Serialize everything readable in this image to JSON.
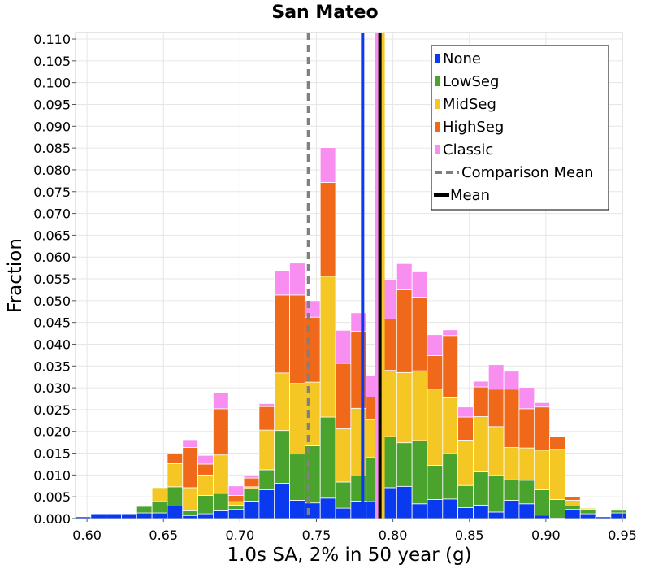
{
  "chart_data": {
    "type": "bar",
    "title": "San Mateo",
    "xlabel": "1.0s SA, 2% in 50 year (g)",
    "ylabel": "Fraction",
    "xlim": [
      0.5925,
      0.95
    ],
    "ylim": [
      0.0,
      0.1115
    ],
    "xticks": [
      "0.60",
      "0.65",
      "0.70",
      "0.75",
      "0.80",
      "0.85",
      "0.90",
      "0.95"
    ],
    "yticks": [
      "0.000",
      "0.005",
      "0.010",
      "0.015",
      "0.020",
      "0.025",
      "0.030",
      "0.035",
      "0.040",
      "0.045",
      "0.050",
      "0.055",
      "0.060",
      "0.065",
      "0.070",
      "0.075",
      "0.080",
      "0.085",
      "0.090",
      "0.095",
      "0.100",
      "0.105",
      "0.110"
    ],
    "grid": true,
    "stacked": true,
    "bin_start": 0.5925,
    "bin_width": 0.01,
    "series": [
      {
        "name": "None",
        "color": "#0a3af0",
        "values": [
          0.0004,
          0.0011,
          0.0011,
          0.0011,
          0.0013,
          0.0013,
          0.0029,
          0.0007,
          0.0011,
          0.0018,
          0.0021,
          0.004,
          0.0066,
          0.0081,
          0.0042,
          0.0036,
          0.0047,
          0.0024,
          0.004,
          0.0039,
          0.0071,
          0.0074,
          0.0034,
          0.0044,
          0.0045,
          0.0025,
          0.0031,
          0.0015,
          0.0042,
          0.0034,
          0.0008,
          0.0001,
          0.0021,
          0.0011,
          0.0004,
          0.0013
        ]
      },
      {
        "name": "LowSeg",
        "color": "#4aa32c",
        "values": [
          0,
          0,
          0,
          0,
          0.0015,
          0.0026,
          0.0044,
          0.0011,
          0.0042,
          0.004,
          0.001,
          0.0029,
          0.0046,
          0.0121,
          0.0106,
          0.0131,
          0.0186,
          0.006,
          0.0058,
          0.0101,
          0.0117,
          0.01,
          0.0145,
          0.0078,
          0.0104,
          0.0051,
          0.0076,
          0.0084,
          0.0047,
          0.0054,
          0.0058,
          0.0043,
          0.0008,
          0.001,
          0,
          0.0006
        ]
      },
      {
        "name": "MidSeg",
        "color": "#f4c725",
        "values": [
          0,
          0,
          0,
          0,
          0,
          0.0032,
          0.0053,
          0.0053,
          0.0047,
          0.0088,
          0.0008,
          0.0004,
          0.0091,
          0.0132,
          0.0162,
          0.0146,
          0.0323,
          0.0122,
          0.0155,
          0.0087,
          0.0152,
          0.0161,
          0.016,
          0.0175,
          0.0128,
          0.0104,
          0.0127,
          0.0112,
          0.0074,
          0.0074,
          0.0091,
          0.0115,
          0.0013,
          0.0003,
          0,
          0
        ]
      },
      {
        "name": "HighSeg",
        "color": "#f0691a",
        "values": [
          0,
          0,
          0,
          0,
          0,
          0,
          0.0023,
          0.0092,
          0.0025,
          0.0106,
          0.0014,
          0.002,
          0.0054,
          0.0179,
          0.0203,
          0.0149,
          0.0215,
          0.015,
          0.0177,
          0.0052,
          0.0118,
          0.019,
          0.0169,
          0.0077,
          0.0143,
          0.0053,
          0.0068,
          0.0086,
          0.0134,
          0.009,
          0.0099,
          0.0029,
          0.0008,
          0,
          0,
          0
        ]
      },
      {
        "name": "Classic",
        "color": "#f88ef0",
        "values": [
          0,
          0,
          0,
          0,
          0,
          0,
          0,
          0.0018,
          0.002,
          0.0037,
          0.0022,
          0.0005,
          0.0007,
          0.0055,
          0.0073,
          0.0038,
          0.008,
          0.0076,
          0.0042,
          0.005,
          0.0091,
          0.006,
          0.0058,
          0.0048,
          0.0013,
          0.0023,
          0.0013,
          0.0056,
          0.0041,
          0.0049,
          0.001,
          0,
          0.0001,
          0,
          0,
          0
        ]
      }
    ],
    "vertical_lines": [
      {
        "name": "Comparison Mean",
        "x": 0.7448,
        "color": "#808080",
        "style": "dashed"
      },
      {
        "name": "None",
        "x": 0.7802,
        "color": "#0a3af0",
        "style": "solid"
      },
      {
        "name": "LowSeg",
        "x": 0.7917,
        "color": "#4aa32c",
        "style": "solid"
      },
      {
        "name": "MidSeg",
        "x": 0.7936,
        "color": "#f4c725",
        "style": "solid"
      },
      {
        "name": "HighSeg",
        "x": 0.7907,
        "color": "#f0691a",
        "style": "solid"
      },
      {
        "name": "Classic",
        "x": 0.7895,
        "color": "#f88ef0",
        "style": "solid"
      },
      {
        "name": "Mean",
        "x": 0.7915,
        "color": "#000000",
        "style": "solid"
      }
    ],
    "legend": {
      "placement": "top-right",
      "entries": [
        {
          "label": "None",
          "color": "#0a3af0",
          "kind": "box"
        },
        {
          "label": "LowSeg",
          "color": "#4aa32c",
          "kind": "box"
        },
        {
          "label": "MidSeg",
          "color": "#f4c725",
          "kind": "box"
        },
        {
          "label": "HighSeg",
          "color": "#f0691a",
          "kind": "box"
        },
        {
          "label": "Classic",
          "color": "#f88ef0",
          "kind": "box"
        },
        {
          "label": "Comparison Mean",
          "color": "#808080",
          "kind": "dashed"
        },
        {
          "label": "Mean",
          "color": "#000000",
          "kind": "solid"
        }
      ]
    }
  }
}
